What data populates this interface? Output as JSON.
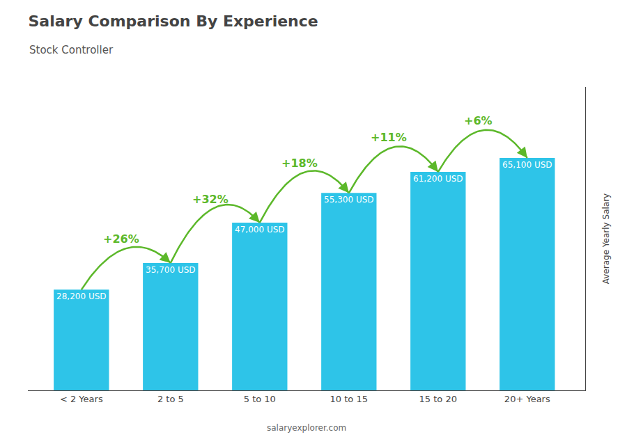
{
  "chart_data": {
    "type": "bar",
    "title": "Salary Comparison By Experience",
    "subtitle": "Stock Controller",
    "ylabel": "Average Yearly Salary",
    "footer": "salaryexplorer.com",
    "categories": [
      "< 2 Years",
      "2 to 5",
      "5 to 10",
      "10 to 15",
      "15 to 20",
      "20+ Years"
    ],
    "values": [
      28200,
      35700,
      47000,
      55300,
      61200,
      65100
    ],
    "value_labels": [
      "28,200 USD",
      "35,700 USD",
      "47,000 USD",
      "55,300 USD",
      "61,200 USD",
      "65,100 USD"
    ],
    "data_labels": true,
    "annotations": [
      "+26%",
      "+32%",
      "+18%",
      "+11%",
      "+6%"
    ],
    "color": "#2ec4e8",
    "ylim": [
      0,
      85000
    ],
    "grid": false,
    "tick_labels": "x"
  }
}
